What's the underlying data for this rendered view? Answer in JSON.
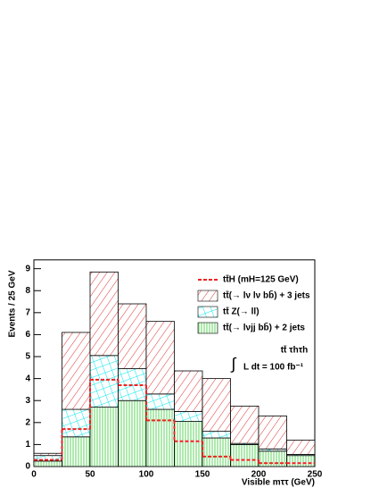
{
  "chart_data": {
    "type": "histogram",
    "bins": [
      0,
      25,
      50,
      75,
      100,
      125,
      150,
      175,
      200,
      225,
      250
    ],
    "series": [
      {
        "name": "tt̄(→ lνjj bb̄) + 2 jets",
        "color": "#33cc33",
        "pattern": "vertical",
        "stacked": true,
        "values": [
          0.25,
          1.35,
          2.7,
          3.0,
          2.6,
          2.05,
          1.3,
          1.0,
          0.7,
          0.5
        ]
      },
      {
        "name": "tt̄ Z(→ ll)",
        "color": "#00e5ee",
        "pattern": "grid",
        "stacked": true,
        "values": [
          0.25,
          1.25,
          2.35,
          1.45,
          0.7,
          0.45,
          0.3,
          0.05,
          0.1,
          0.05
        ]
      },
      {
        "name": "tt̄(→ lν lν bb̄) + 3 jets",
        "color": "#dd3333",
        "pattern": "diagonal",
        "stacked": true,
        "values": [
          0.1,
          3.5,
          3.8,
          2.95,
          3.3,
          1.85,
          2.4,
          1.7,
          1.5,
          0.65
        ]
      },
      {
        "name": "tt̄H (mH=125 GeV)",
        "color": "#ee2222",
        "pattern": "dashed-line",
        "stacked": false,
        "values": [
          0.3,
          1.7,
          3.95,
          3.7,
          2.1,
          1.15,
          0.45,
          0.3,
          0.15,
          0.15
        ]
      }
    ],
    "legend_order": [
      3,
      2,
      1,
      0
    ],
    "annotations": [
      "tt̄ τhτh",
      "∫",
      "L dt = 100 fb⁻¹"
    ],
    "xlabel": "Visible mττ (GeV)",
    "ylabel": "Events / 25 GeV",
    "xlim": [
      0,
      250
    ],
    "xticks": [
      0,
      50,
      100,
      150,
      200,
      250
    ],
    "ylim": [
      0,
      9.4
    ],
    "yticks": [
      0,
      1,
      2,
      3,
      4,
      5,
      6,
      7,
      8,
      9
    ]
  }
}
